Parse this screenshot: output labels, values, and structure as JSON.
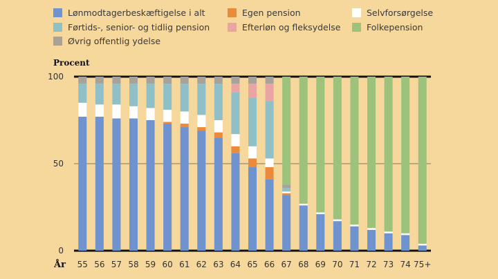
{
  "chart_data": {
    "type": "bar",
    "stacked": true,
    "ylabel": "Procent",
    "xlabel": "År",
    "ylim": [
      0,
      100
    ],
    "yticks": [
      0,
      50,
      100
    ],
    "grid": true,
    "legend_position": "top",
    "categories": [
      "55",
      "56",
      "57",
      "58",
      "59",
      "60",
      "61",
      "62",
      "63",
      "64",
      "65",
      "66",
      "67",
      "68",
      "69",
      "70",
      "71",
      "72",
      "73",
      "74",
      "75+"
    ],
    "series": [
      {
        "name": "Lønmodtagerbeskæftigelse i alt",
        "color": "#6f93cf",
        "values": [
          77,
          77,
          76,
          76,
          75,
          73,
          71,
          69,
          65,
          56,
          48,
          41,
          32,
          26,
          21,
          17,
          14,
          12,
          10,
          9,
          3
        ]
      },
      {
        "name": "Egen pension",
        "color": "#e98b3a",
        "values": [
          0,
          0,
          0,
          0,
          0,
          1,
          2,
          2,
          3,
          4,
          5,
          7,
          1,
          0,
          0,
          0,
          0,
          0,
          0,
          0,
          0
        ]
      },
      {
        "name": "Selvforsørgelse",
        "color": "#ffffff",
        "values": [
          8,
          7,
          8,
          7,
          7,
          7,
          7,
          7,
          7,
          7,
          7,
          5,
          1,
          1,
          1,
          1,
          1,
          1,
          1,
          1,
          1
        ]
      },
      {
        "name": "Førtids-, senior- og tidlig pension",
        "color": "#8fc0c8",
        "values": [
          11,
          12,
          12,
          13,
          14,
          15,
          16,
          18,
          21,
          24,
          28,
          33,
          2,
          0,
          0,
          0,
          0,
          0,
          0,
          0,
          0
        ]
      },
      {
        "name": "Efterløn og fleksydelse",
        "color": "#eba4a4",
        "values": [
          0,
          0,
          0,
          0,
          0,
          0,
          0,
          0,
          0,
          5,
          8,
          10,
          0,
          0,
          0,
          0,
          0,
          0,
          0,
          0,
          0
        ]
      },
      {
        "name": "Øvrig offentlig ydelse",
        "color": "#a6a39a",
        "values": [
          4,
          4,
          4,
          4,
          4,
          4,
          4,
          4,
          4,
          4,
          4,
          4,
          2,
          0,
          0,
          0,
          0,
          0,
          0,
          0,
          0
        ]
      },
      {
        "name": "Folkepension",
        "color": "#9cc27c",
        "values": [
          0,
          0,
          0,
          0,
          0,
          0,
          0,
          0,
          0,
          0,
          0,
          0,
          62,
          73,
          78,
          82,
          85,
          87,
          89,
          90,
          96
        ]
      }
    ]
  },
  "legend_order": [
    {
      "series": 0,
      "col": 0,
      "row": 0
    },
    {
      "series": 3,
      "col": 0,
      "row": 1
    },
    {
      "series": 5,
      "col": 0,
      "row": 2
    },
    {
      "series": 1,
      "col": 1,
      "row": 0
    },
    {
      "series": 4,
      "col": 1,
      "row": 1
    },
    {
      "series": 2,
      "col": 2,
      "row": 0
    },
    {
      "series": 6,
      "col": 2,
      "row": 1
    }
  ]
}
